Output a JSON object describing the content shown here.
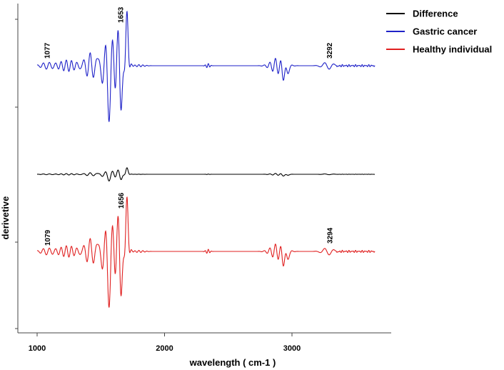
{
  "chart_data": {
    "type": "line",
    "xlabel": "wavelength ( cm-1 )",
    "ylabel": "derivetive",
    "xlim": [
      900,
      3750
    ],
    "x_ticks": [
      1000,
      2000,
      3000
    ],
    "y_ticks_shown": false,
    "grid": false,
    "legend_position": "top-right",
    "series": [
      {
        "name": "Difference",
        "color": "#000000"
      },
      {
        "name": "Gastric cancer",
        "color": "#1f22c8"
      },
      {
        "name": "Healthy individual",
        "color": "#e02020"
      }
    ],
    "peaks": [
      {
        "series": "Gastric cancer",
        "x": 1077,
        "label": "1077"
      },
      {
        "series": "Gastric cancer",
        "x": 1653,
        "label": "1653"
      },
      {
        "series": "Gastric cancer",
        "x": 3292,
        "label": "3292"
      },
      {
        "series": "Healthy individual",
        "x": 1079,
        "label": "1079"
      },
      {
        "series": "Healthy individual",
        "x": 1656,
        "label": "1656"
      },
      {
        "series": "Healthy individual",
        "x": 3294,
        "label": "3294"
      }
    ]
  }
}
